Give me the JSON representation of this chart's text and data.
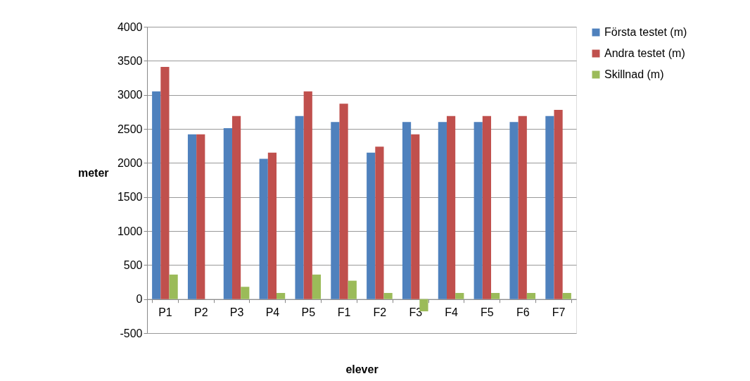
{
  "chart_data": {
    "type": "bar",
    "xlabel": "elever",
    "ylabel": "meter",
    "categories": [
      "P1",
      "P2",
      "P3",
      "P4",
      "P5",
      "F1",
      "F2",
      "F3",
      "F4",
      "F5",
      "F6",
      "F7"
    ],
    "series": [
      {
        "name": "Första testet (m)",
        "color": "#4f81bd",
        "values": [
          3050,
          2420,
          2510,
          2060,
          2690,
          2600,
          2150,
          2600,
          2600,
          2600,
          2600,
          2690
        ]
      },
      {
        "name": "Andra testet (m)",
        "color": "#c0504d",
        "values": [
          3410,
          2420,
          2690,
          2150,
          3050,
          2870,
          2240,
          2420,
          2690,
          2690,
          2690,
          2780
        ]
      },
      {
        "name": "Skillnad (m)",
        "color": "#9bbb59",
        "values": [
          360,
          0,
          180,
          90,
          360,
          270,
          90,
          -180,
          90,
          90,
          90,
          90
        ]
      }
    ],
    "ylim": [
      -500,
      4000
    ],
    "yticks": [
      -500,
      0,
      500,
      1000,
      1500,
      2000,
      2500,
      3000,
      3500,
      4000
    ],
    "grid": "y",
    "legend": "right"
  }
}
